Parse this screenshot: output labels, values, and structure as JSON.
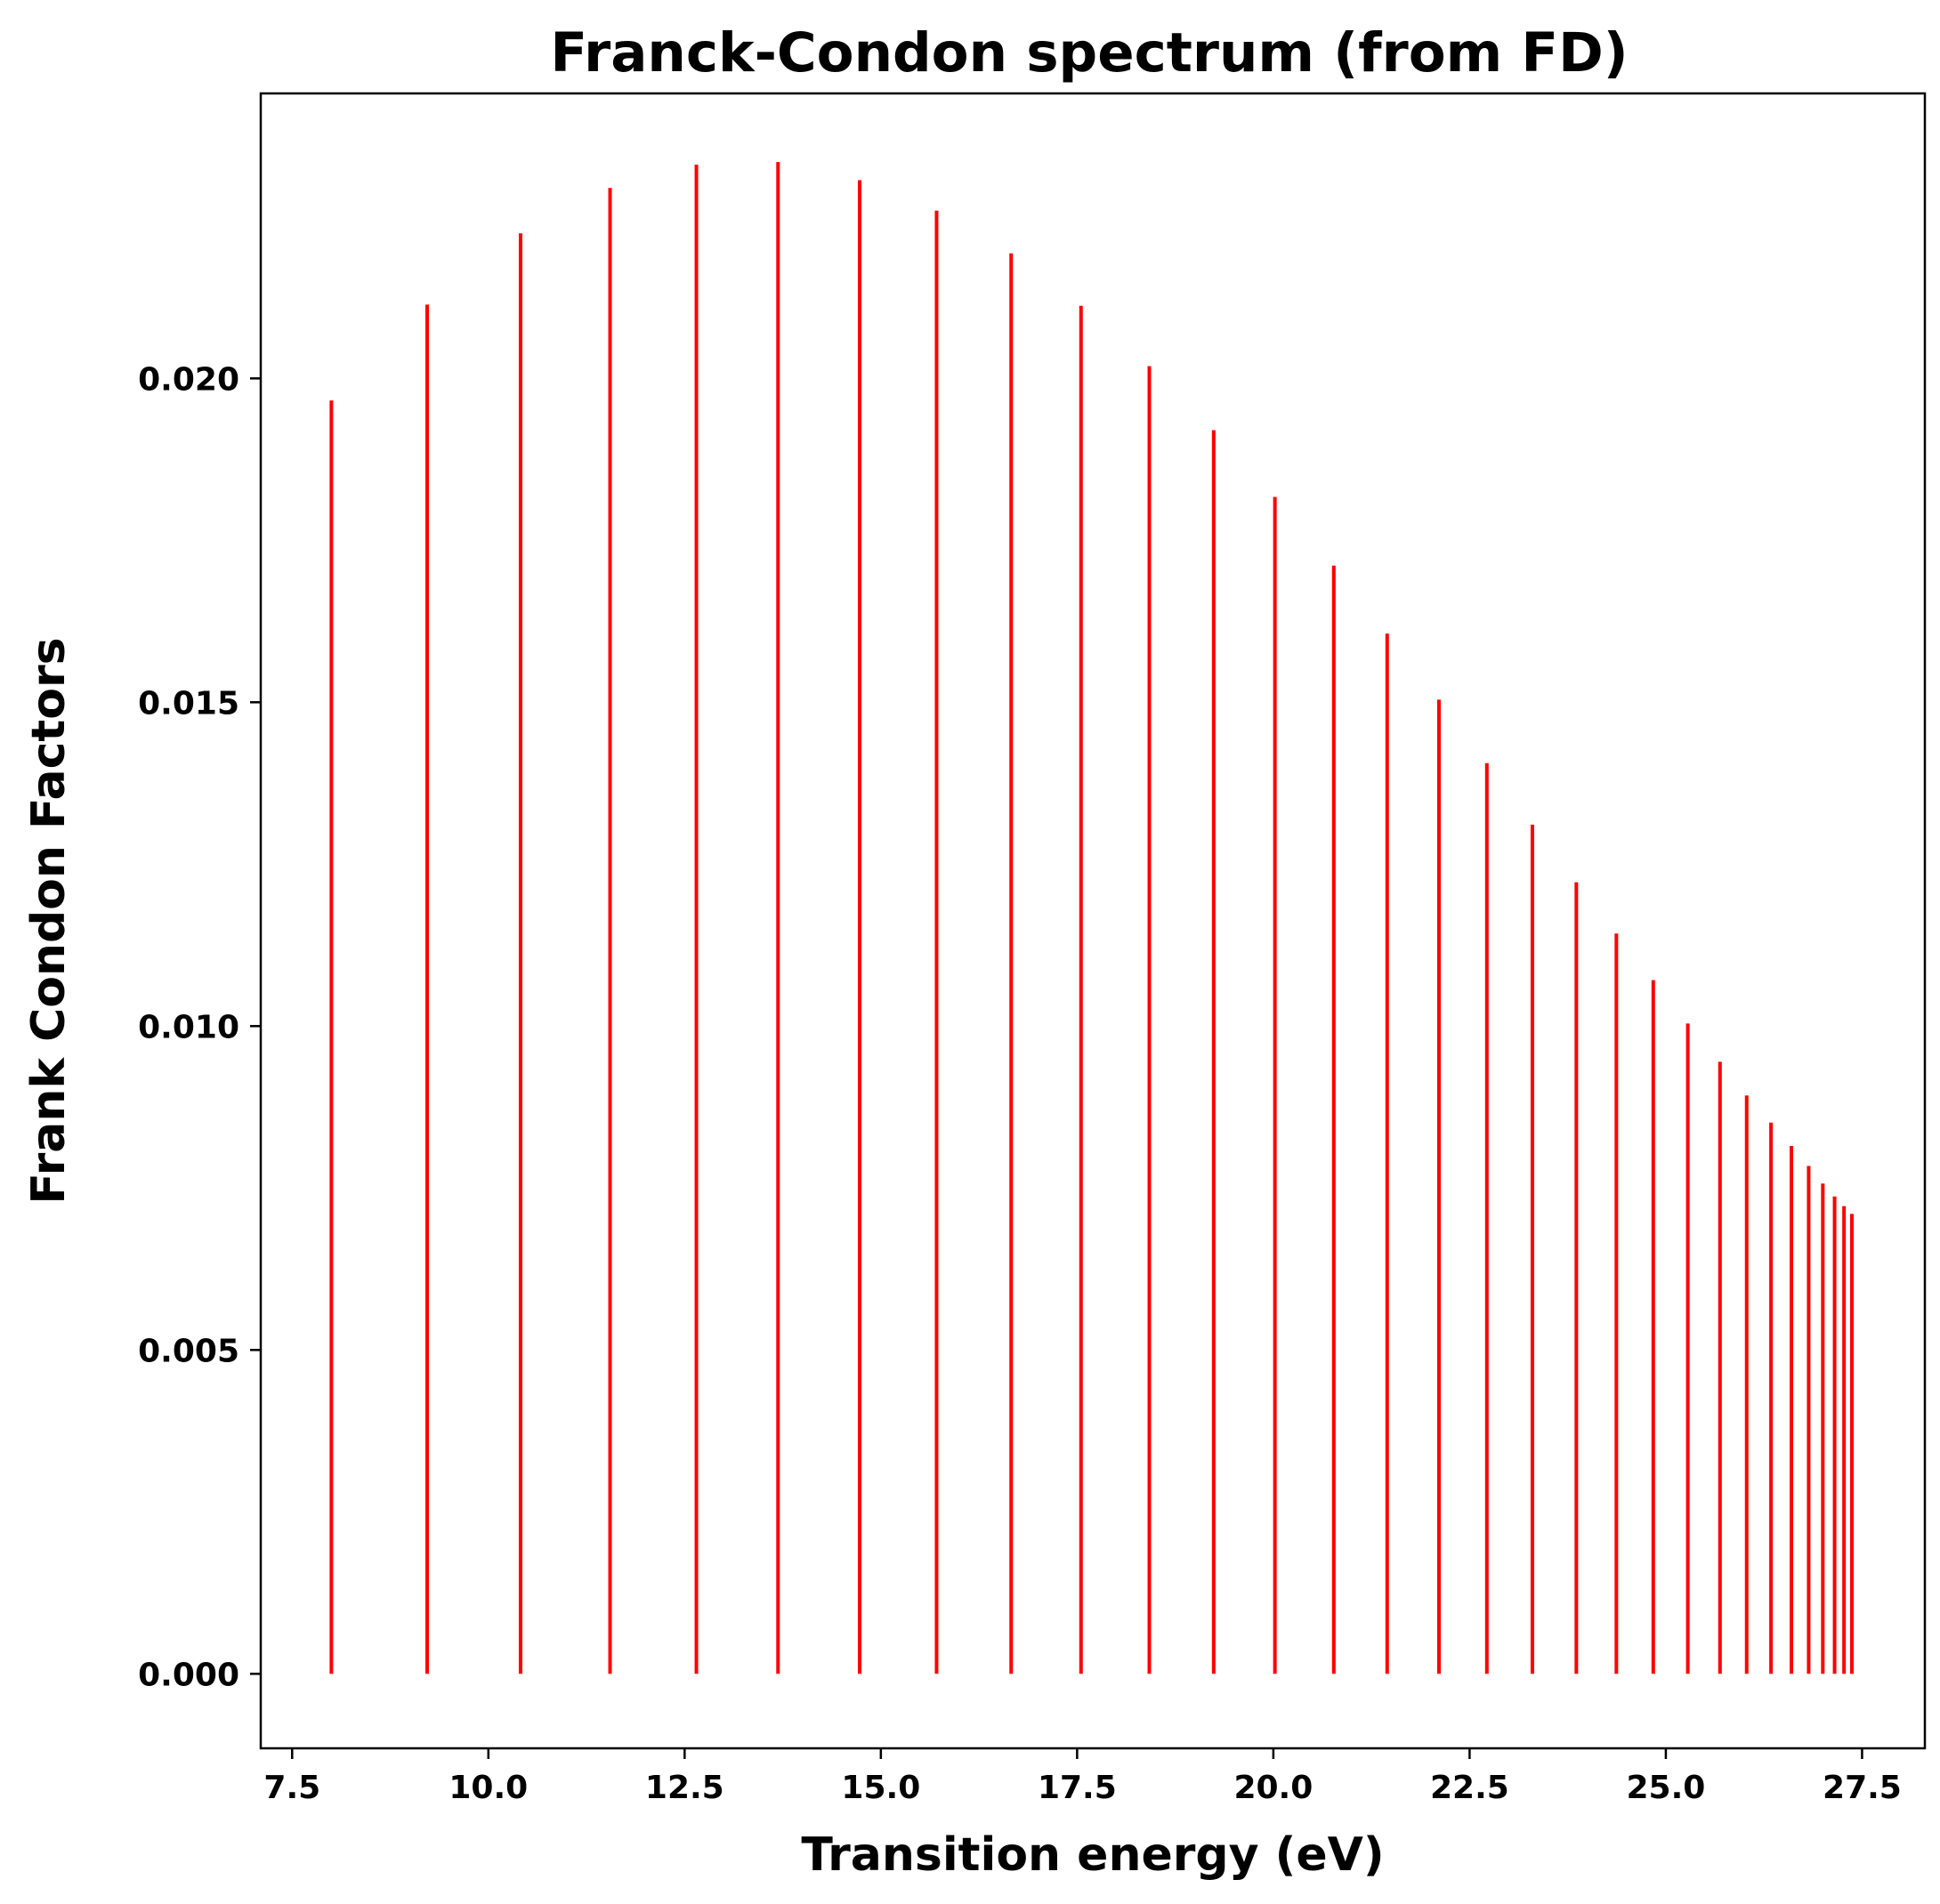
{
  "chart_data": {
    "type": "bar",
    "title": "Franck-Condon spectrum (from FD)",
    "xlabel": "Transition energy (eV)",
    "ylabel": "Frank Condon Factors",
    "xlim": [
      7.1,
      28.3
    ],
    "ylim": [
      -0.00115,
      0.0244
    ],
    "xticks": [
      7.5,
      10.0,
      12.5,
      15.0,
      17.5,
      20.0,
      22.5,
      25.0,
      27.5
    ],
    "xtick_labels": [
      "7.5",
      "10.0",
      "12.5",
      "15.0",
      "17.5",
      "20.0",
      "22.5",
      "25.0",
      "27.5"
    ],
    "yticks": [
      0.0,
      0.005,
      0.01,
      0.015,
      0.02
    ],
    "ytick_labels": [
      "0.000",
      "0.005",
      "0.010",
      "0.015",
      "0.020"
    ],
    "grid": false,
    "bar_color": "#ff0000",
    "series": [
      {
        "x": [
          8.0,
          9.22,
          10.41,
          11.55,
          12.65,
          13.69,
          14.73,
          15.71,
          16.66,
          17.55,
          18.42,
          19.24,
          20.02,
          20.77,
          21.45,
          22.11,
          22.72,
          23.3,
          23.86,
          24.37,
          24.84,
          25.28,
          25.69,
          26.03,
          26.34,
          26.6,
          26.82,
          27.0,
          27.15,
          27.27,
          27.37
        ],
        "y": [
          0.01966,
          0.02114,
          0.02224,
          0.02294,
          0.0233,
          0.02334,
          0.02306,
          0.02259,
          0.02193,
          0.02112,
          0.02019,
          0.0192,
          0.01817,
          0.01711,
          0.01606,
          0.01504,
          0.01406,
          0.01311,
          0.01222,
          0.01143,
          0.01071,
          0.01004,
          0.00945,
          0.00893,
          0.00851,
          0.00815,
          0.00784,
          0.00757,
          0.00737,
          0.00722,
          0.0071
        ]
      }
    ]
  }
}
